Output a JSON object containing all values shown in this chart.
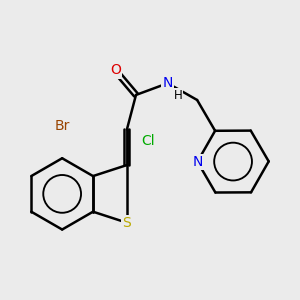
{
  "background_color": "#ebebeb",
  "bond_color": "#000000",
  "bond_width": 1.8,
  "atom_colors": {
    "Br": "#994400",
    "Cl": "#00AA00",
    "S": "#BBAA00",
    "N": "#0000EE",
    "O": "#DD0000",
    "H": "#000000",
    "C": "#000000"
  },
  "font_size": 10,
  "fig_width": 3.0,
  "fig_height": 3.0,
  "dpi": 100
}
